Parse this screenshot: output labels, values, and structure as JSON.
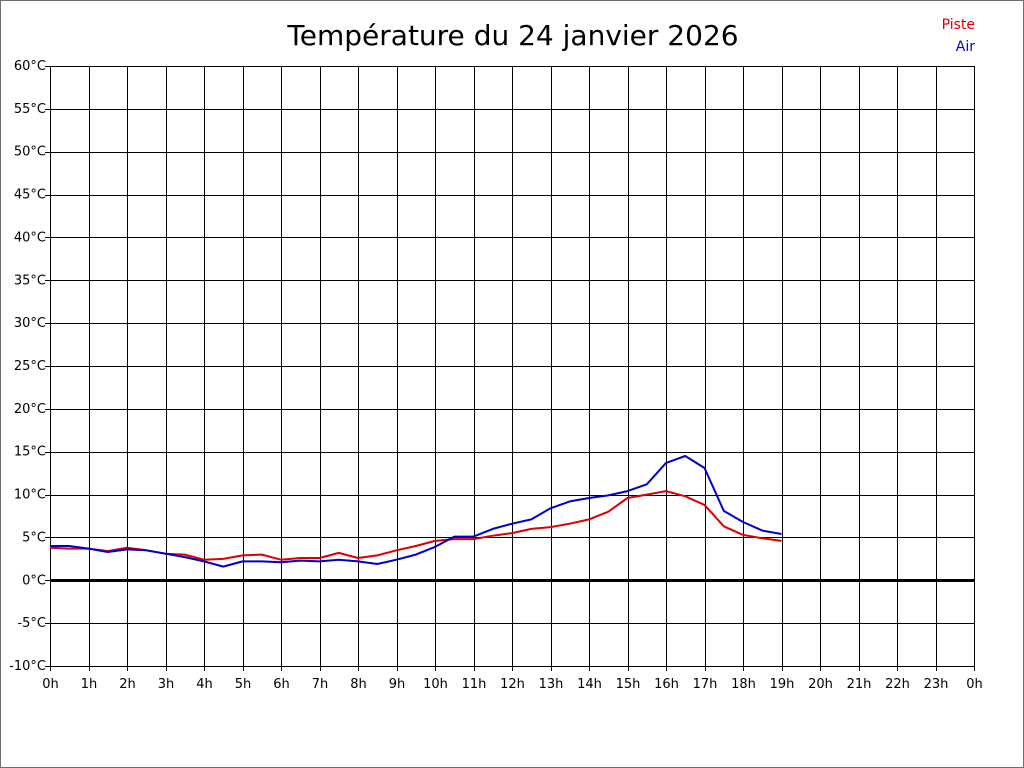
{
  "chart_data": {
    "type": "line",
    "title": "Température du 24 janvier 2026",
    "xlabel": "",
    "ylabel": "",
    "xlim": [
      0,
      24
    ],
    "ylim": [
      -10,
      60
    ],
    "y_ticks": [
      60,
      55,
      50,
      45,
      40,
      35,
      30,
      25,
      20,
      15,
      10,
      5,
      0,
      -5,
      -10
    ],
    "y_tick_labels": [
      "60°C",
      "55°C",
      "50°C",
      "45°C",
      "40°C",
      "35°C",
      "30°C",
      "25°C",
      "20°C",
      "15°C",
      "10°C",
      "5°C",
      "0°C",
      "-5°C",
      "-10°C"
    ],
    "x_ticks": [
      0,
      1,
      2,
      3,
      4,
      5,
      6,
      7,
      8,
      9,
      10,
      11,
      12,
      13,
      14,
      15,
      16,
      17,
      18,
      19,
      20,
      21,
      22,
      23,
      24
    ],
    "x_tick_labels": [
      "0h",
      "1h",
      "2h",
      "3h",
      "4h",
      "5h",
      "6h",
      "7h",
      "8h",
      "9h",
      "10h",
      "11h",
      "12h",
      "13h",
      "14h",
      "15h",
      "16h",
      "17h",
      "18h",
      "19h",
      "20h",
      "21h",
      "22h",
      "23h",
      "0h"
    ],
    "grid": true,
    "zero_line": true,
    "legend_position": "top-right",
    "series": [
      {
        "name": "Piste",
        "color": "#dd0000",
        "x": [
          0,
          0.5,
          1,
          1.5,
          2,
          2.5,
          3,
          3.5,
          4,
          4.5,
          5,
          5.5,
          6,
          6.5,
          7,
          7.5,
          8,
          8.5,
          9,
          9.5,
          10,
          10.5,
          11,
          11.5,
          12,
          12.5,
          13,
          13.5,
          14,
          14.5,
          15,
          15.5,
          16,
          16.5,
          17,
          17.5,
          18,
          18.5,
          19
        ],
        "values": [
          3.8,
          3.7,
          3.7,
          3.4,
          3.8,
          3.5,
          3.1,
          3.0,
          2.4,
          2.5,
          2.9,
          3.0,
          2.4,
          2.6,
          2.6,
          3.2,
          2.6,
          2.9,
          3.5,
          4.0,
          4.6,
          4.8,
          4.8,
          5.2,
          5.5,
          6.0,
          6.2,
          6.6,
          7.1,
          8.0,
          9.6,
          10.0,
          10.4,
          9.8,
          8.8,
          6.3,
          5.3,
          4.9,
          4.6
        ]
      },
      {
        "name": "Air",
        "color": "#0000cc",
        "x": [
          0,
          0.5,
          1,
          1.5,
          2,
          2.5,
          3,
          3.5,
          4,
          4.5,
          5,
          5.5,
          6,
          6.5,
          7,
          7.5,
          8,
          8.5,
          9,
          9.5,
          10,
          10.5,
          11,
          11.5,
          12,
          12.5,
          13,
          13.5,
          14,
          14.5,
          15,
          15.5,
          16,
          16.5,
          17,
          17.5,
          18,
          18.5,
          19
        ],
        "values": [
          4.0,
          4.0,
          3.7,
          3.3,
          3.6,
          3.5,
          3.1,
          2.7,
          2.2,
          1.6,
          2.2,
          2.2,
          2.1,
          2.3,
          2.2,
          2.4,
          2.2,
          1.9,
          2.4,
          3.0,
          3.9,
          5.1,
          5.1,
          6.0,
          6.6,
          7.1,
          8.4,
          9.2,
          9.6,
          9.9,
          10.4,
          11.2,
          13.7,
          14.5,
          13.1,
          8.1,
          6.8,
          5.8,
          5.4
        ]
      }
    ]
  }
}
